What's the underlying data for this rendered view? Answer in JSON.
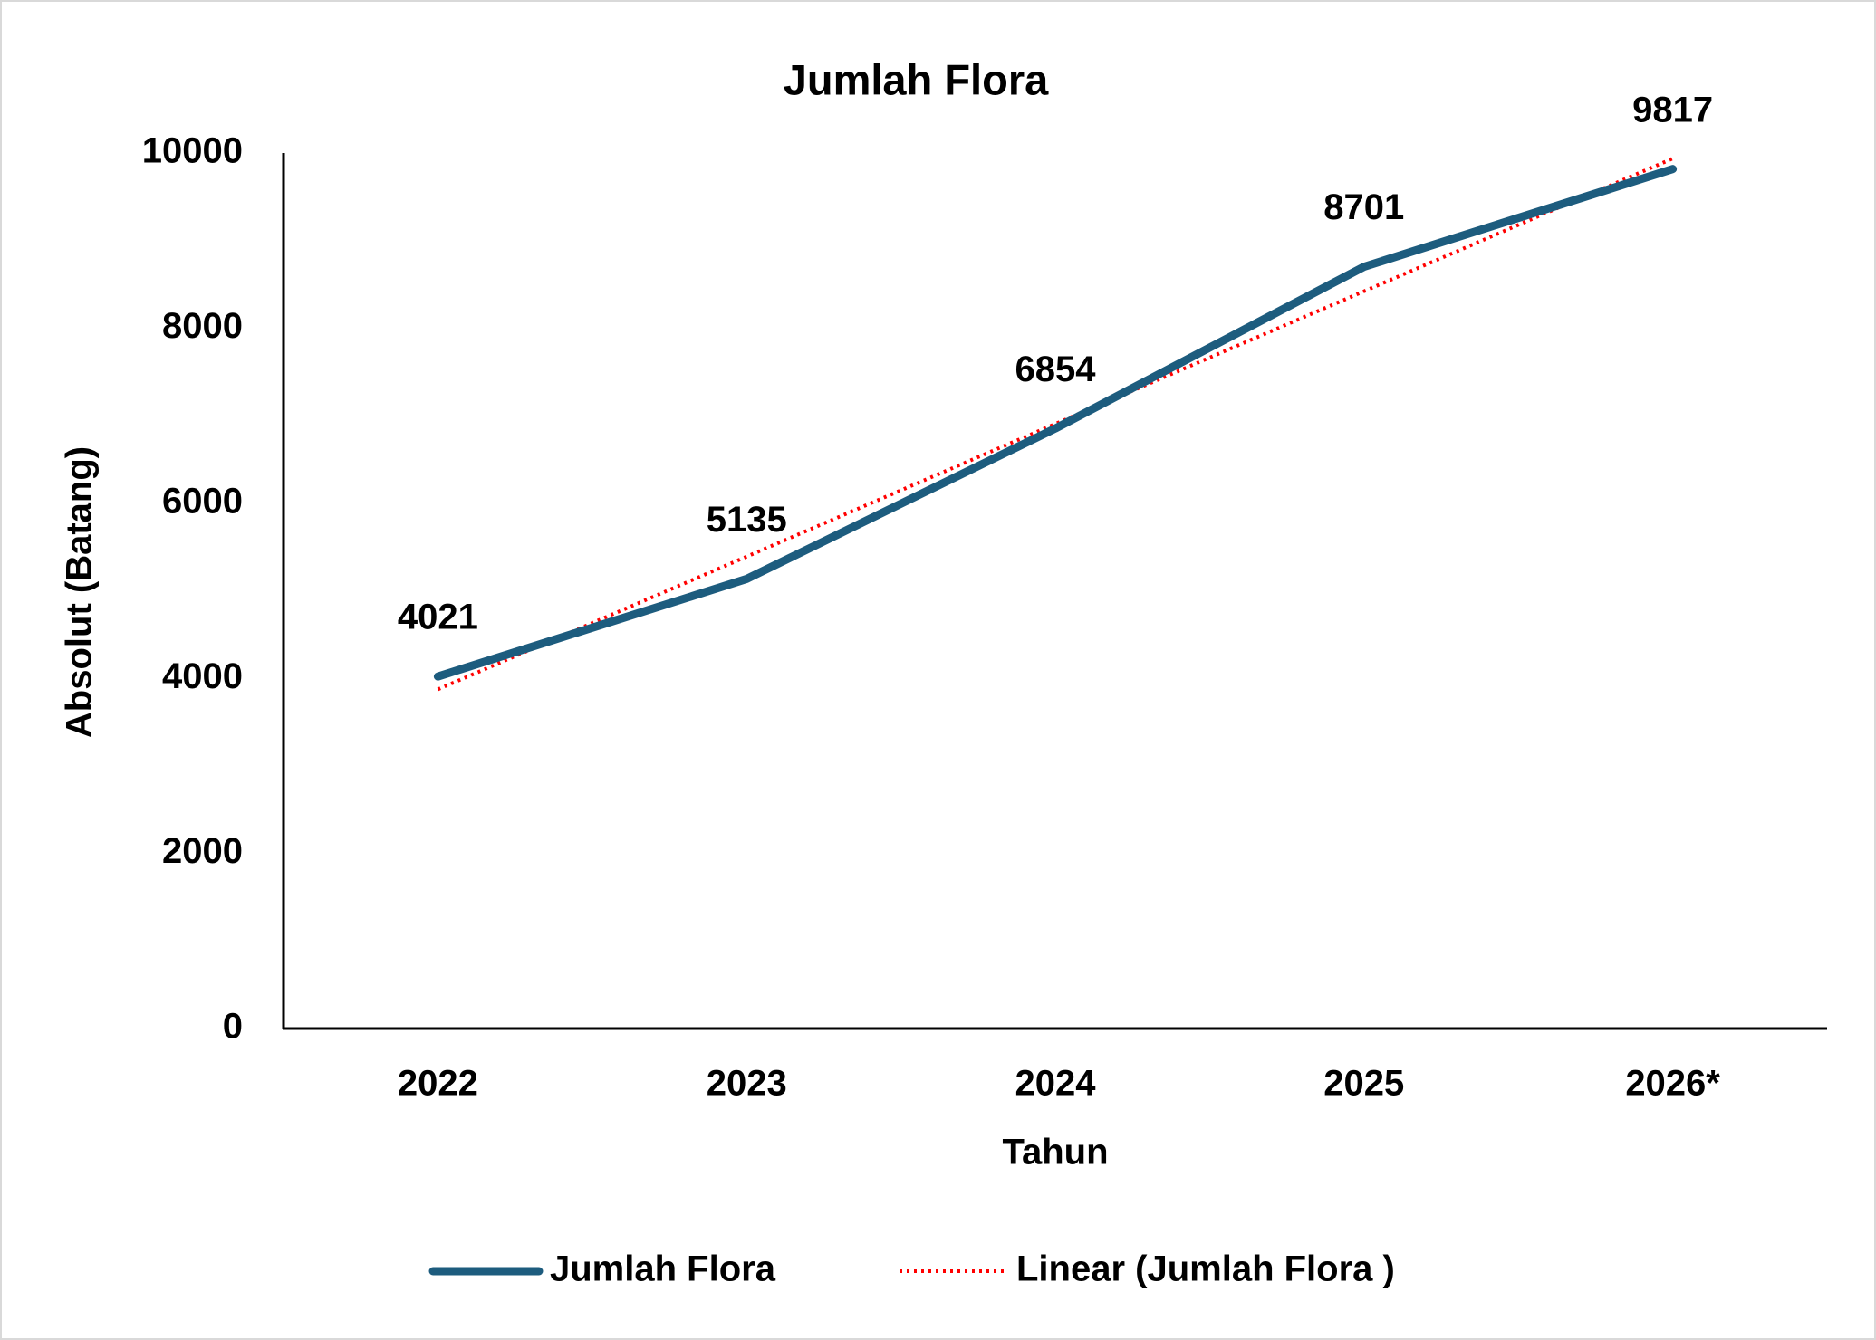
{
  "chart_data": {
    "type": "line",
    "title": "Jumlah Flora",
    "x_label": "Tahun",
    "y_label": "Absolut (Batang)",
    "categories": [
      "2022",
      "2023",
      "2024",
      "2025",
      "2026*"
    ],
    "series": [
      {
        "name": "Jumlah Flora",
        "color": "#1d5c7e",
        "values": [
          4021,
          5135,
          6854,
          8701,
          9817
        ],
        "data_labels": true
      },
      {
        "name": "Linear (Jumlah Flora )",
        "color": "#ff0000",
        "values": [
          3874,
          5390,
          6906,
          8421,
          9937
        ],
        "dotted": true
      }
    ],
    "ylim": [
      0,
      10000
    ],
    "yticks": [
      0,
      2000,
      4000,
      6000,
      8000,
      10000
    ],
    "grid": false,
    "legend": "bottom"
  }
}
